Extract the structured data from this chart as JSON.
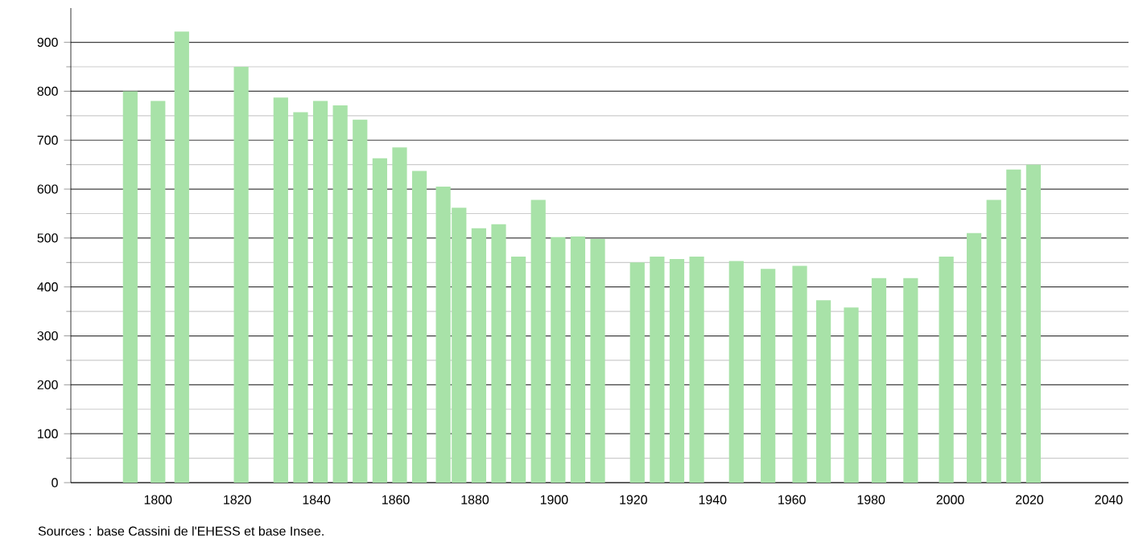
{
  "chart_data": {
    "type": "bar",
    "annotations": [
      "Sources : base Cassini de l'EHESS et base Insee."
    ],
    "x": [
      1793,
      1800,
      1806,
      1821,
      1831,
      1836,
      1841,
      1846,
      1851,
      1856,
      1861,
      1866,
      1872,
      1876,
      1881,
      1886,
      1891,
      1896,
      1901,
      1906,
      1911,
      1921,
      1926,
      1931,
      1936,
      1946,
      1954,
      1962,
      1968,
      1975,
      1982,
      1990,
      1999,
      2006,
      2011,
      2016,
      2021
    ],
    "values": [
      800,
      780,
      922,
      850,
      787,
      757,
      780,
      771,
      742,
      663,
      685,
      637,
      605,
      562,
      520,
      528,
      462,
      578,
      502,
      503,
      498,
      450,
      462,
      457,
      462,
      453,
      437,
      443,
      373,
      358,
      418,
      418,
      462,
      510,
      578,
      640,
      650
    ],
    "color": "#a8e2a8",
    "xlim": [
      1778,
      2045
    ],
    "xticks": [
      1800,
      1820,
      1840,
      1860,
      1880,
      1900,
      1920,
      1940,
      1960,
      1980,
      2000,
      2020,
      2040
    ],
    "ylim": [
      0,
      970
    ],
    "yticks": [
      0,
      100,
      200,
      300,
      400,
      500,
      600,
      700,
      800,
      900
    ],
    "grid": "y"
  }
}
